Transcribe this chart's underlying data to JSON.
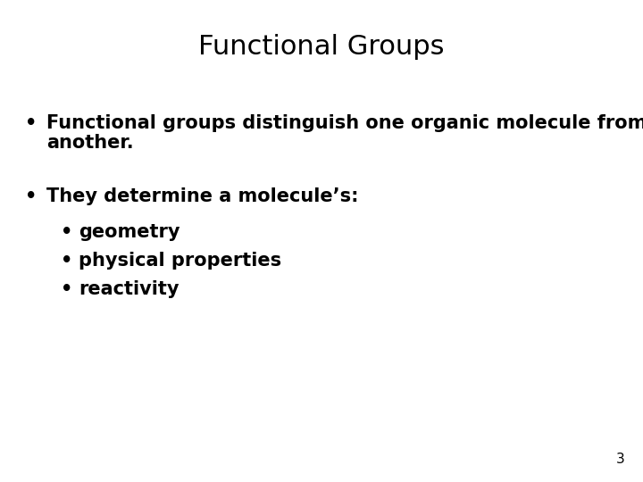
{
  "title": "Functional Groups",
  "title_fontsize": 22,
  "title_fontweight": "normal",
  "background_color": "#ffffff",
  "text_color": "#000000",
  "bullet1_line1": "Functional groups distinguish one organic molecule from",
  "bullet1_line2": "another.",
  "bullet2": "They determine a molecule’s:",
  "sub_bullets": [
    "geometry",
    "physical properties",
    "reactivity"
  ],
  "body_fontsize": 15,
  "sub_fontsize": 15,
  "page_number": "3",
  "page_fontsize": 11,
  "bullet_char": "•"
}
